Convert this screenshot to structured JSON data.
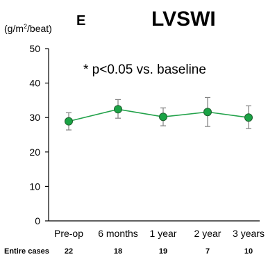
{
  "panel_letter": "E",
  "chart_data": {
    "type": "line",
    "title": "LVSWI",
    "ylabel_pre": "(g/m",
    "ylabel_sup": "2",
    "ylabel_post": "/beat)",
    "annotation": "* p<0.05 vs. baseline",
    "categories": [
      "Pre-op",
      "6 months",
      "1 year",
      "2 year",
      "3 years"
    ],
    "ylim": [
      0,
      50
    ],
    "yticks": [
      0,
      10,
      20,
      30,
      40,
      50
    ],
    "series": [
      {
        "values": [
          28.9,
          32.4,
          30.2,
          31.6,
          30.0
        ],
        "error_lower": [
          26.4,
          29.8,
          27.6,
          27.4,
          26.8
        ],
        "error_upper": [
          31.4,
          35.2,
          32.8,
          35.8,
          33.4
        ]
      }
    ],
    "grid": false,
    "line_color": "#22a24a",
    "marker_color": "#1aa345",
    "marker_edge": "#1f5f2e",
    "error_color": "#7f7f7f",
    "footer": {
      "label": "Entire cases",
      "values": [
        "22",
        "18",
        "19",
        "7",
        "10"
      ]
    }
  }
}
